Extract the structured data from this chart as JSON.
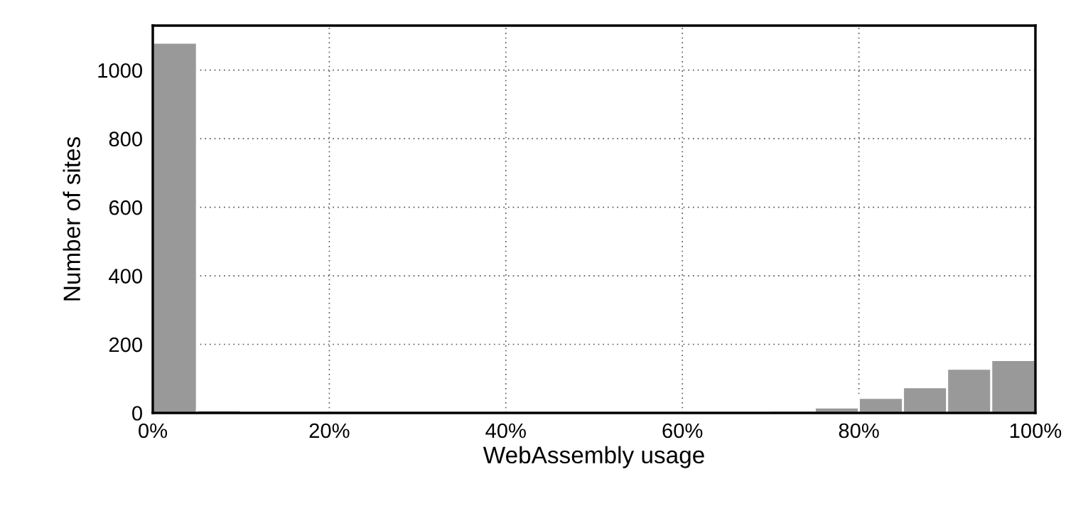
{
  "chart_data": {
    "type": "histogram",
    "xlabel": "WebAssembly usage",
    "ylabel": "Number of sites",
    "bins": [
      0,
      5,
      10,
      15,
      20,
      25,
      30,
      35,
      40,
      45,
      50,
      55,
      60,
      65,
      70,
      75,
      80,
      85,
      90,
      95,
      100
    ],
    "values": [
      1080,
      8,
      0,
      0,
      0,
      0,
      0,
      0,
      0,
      0,
      0,
      0,
      0,
      2,
      7,
      16,
      44,
      75,
      129,
      154
    ],
    "color": "#999999",
    "xlim": [
      0,
      100
    ],
    "xticks": [
      {
        "value": 0,
        "label": "0%"
      },
      {
        "value": 20,
        "label": "20%"
      },
      {
        "value": 40,
        "label": "40%"
      },
      {
        "value": 60,
        "label": "60%"
      },
      {
        "value": 80,
        "label": "80%"
      },
      {
        "value": 100,
        "label": "100%"
      }
    ],
    "ylim": [
      0,
      1130
    ],
    "yticks": [
      0,
      200,
      400,
      600,
      800,
      1000
    ],
    "grid": true
  }
}
